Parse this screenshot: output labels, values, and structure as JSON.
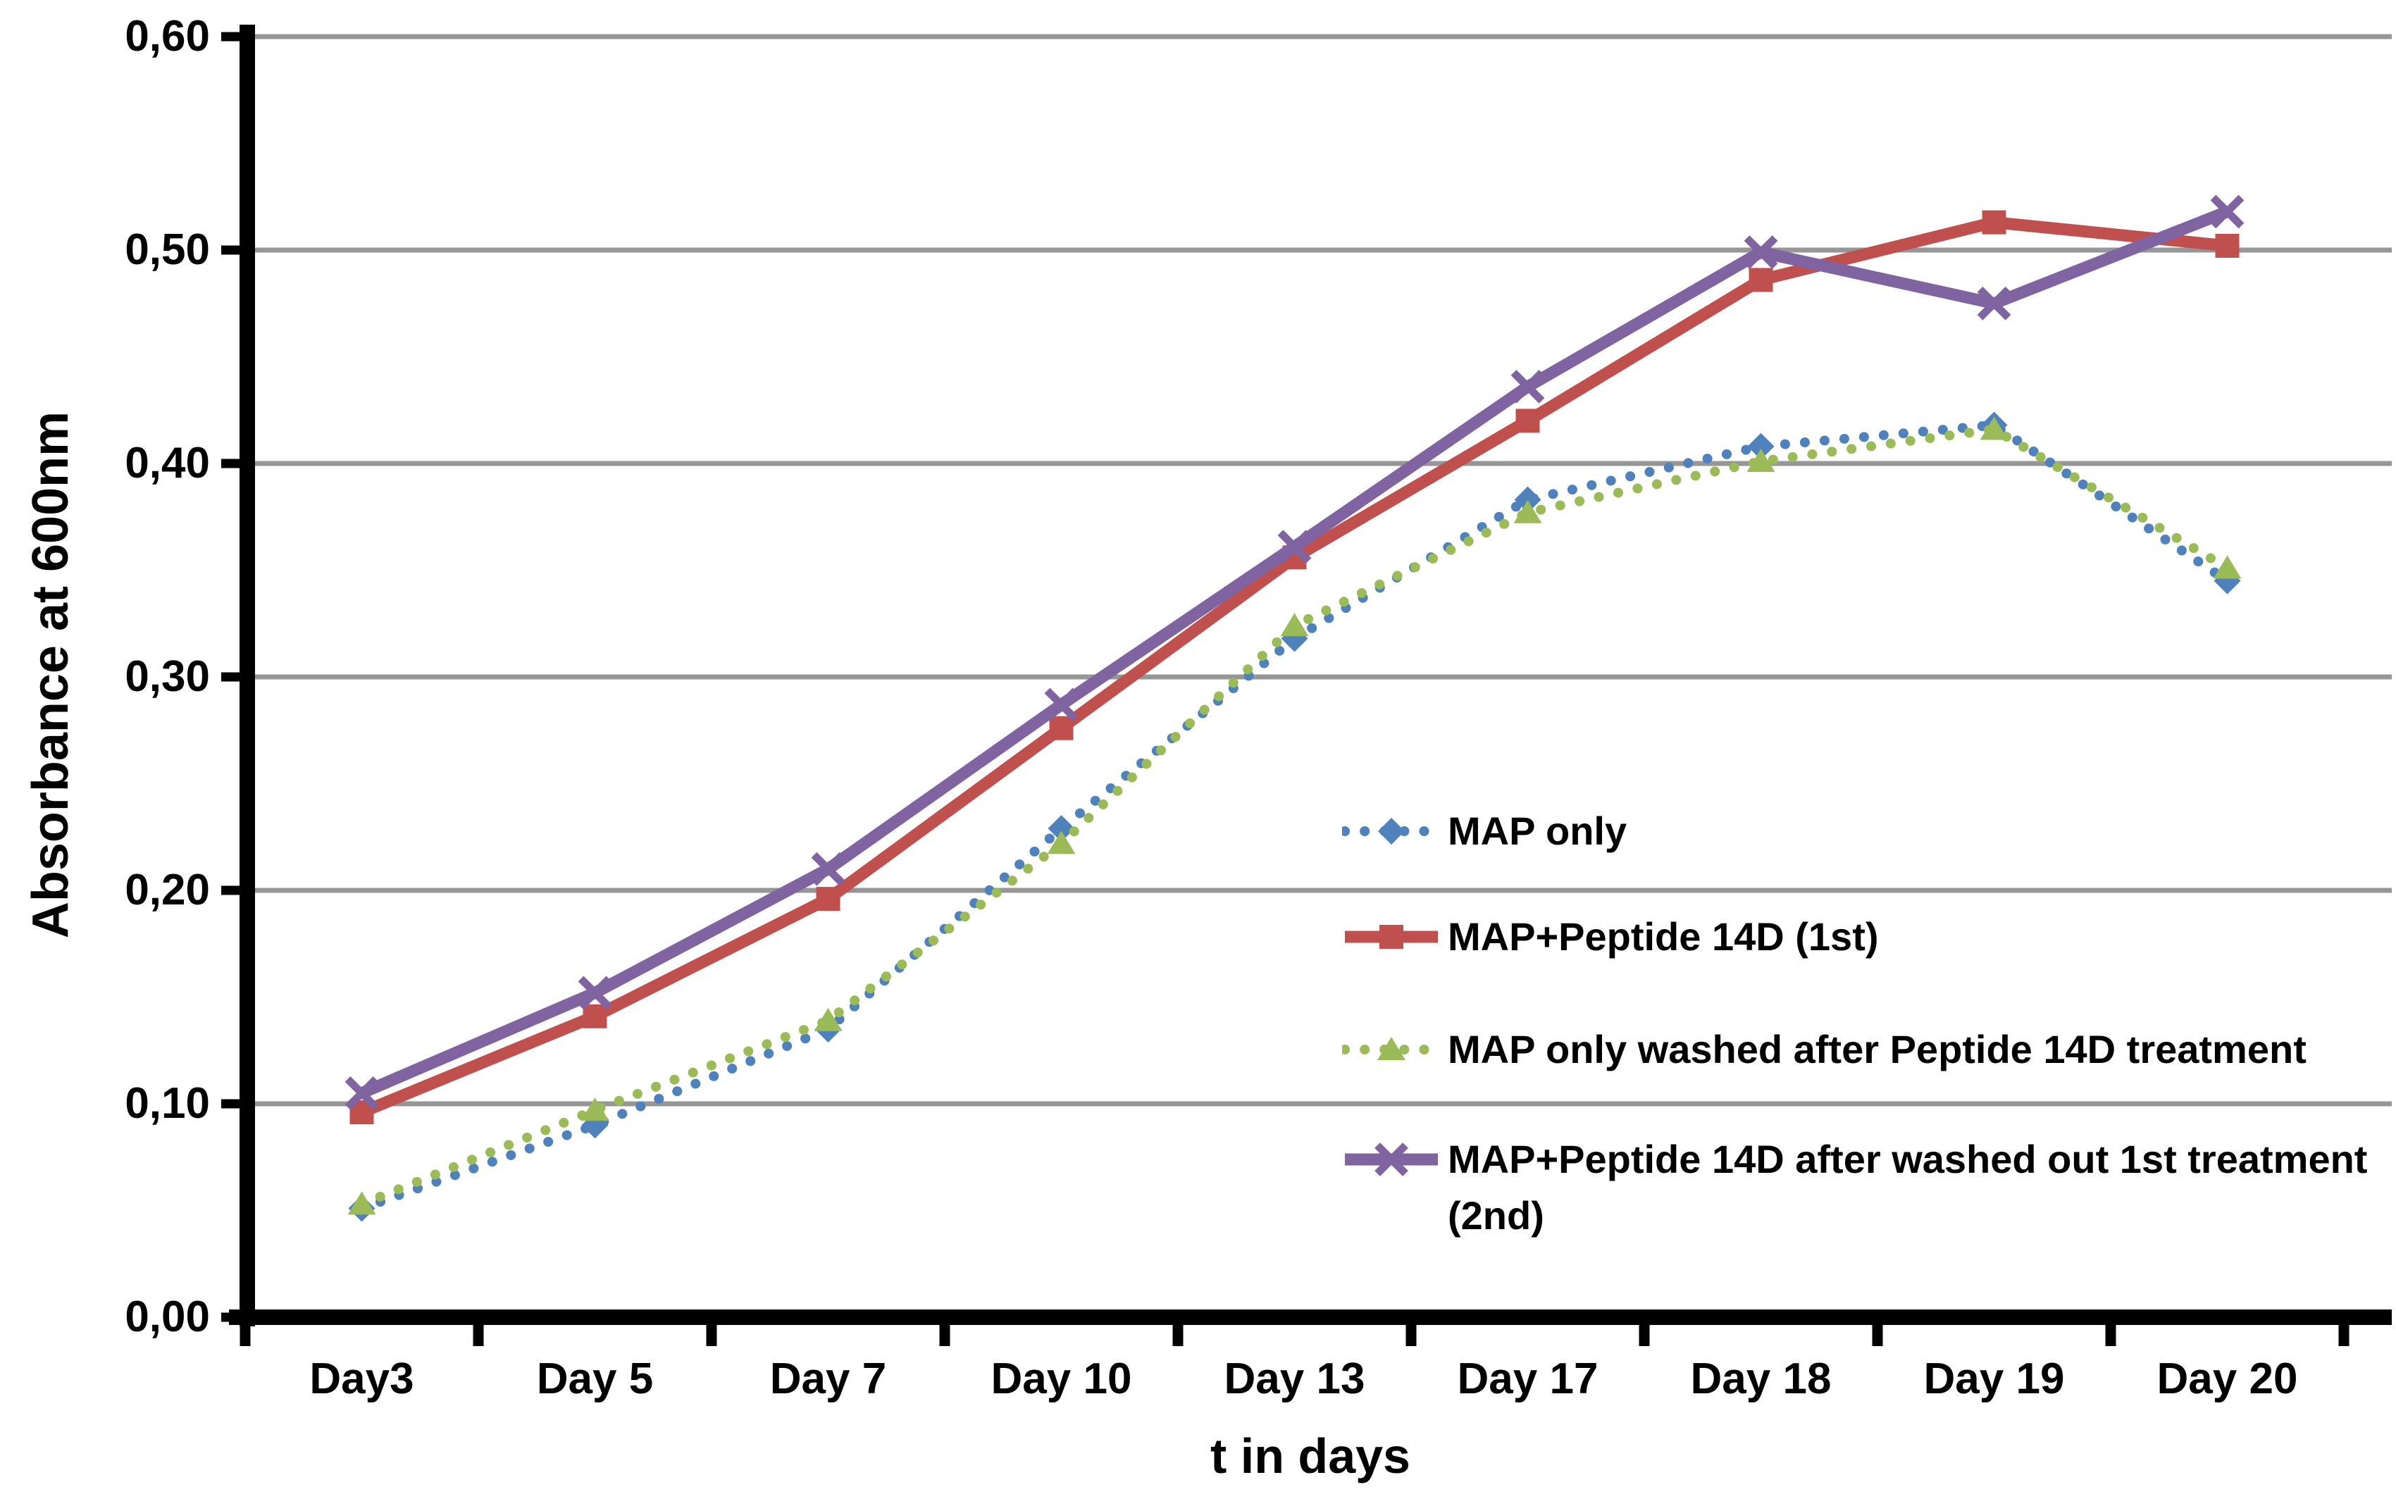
{
  "chart_data": {
    "type": "line",
    "title": "",
    "xlabel": "t in days",
    "ylabel": "Absorbance at 600nm",
    "categories": [
      "Day3",
      "Day 5",
      "Day 7",
      "Day 10",
      "Day 13",
      "Day 17",
      "Day 18",
      "Day 19",
      "Day 20"
    ],
    "y_ticks": [
      "0,00",
      "0,10",
      "0,20",
      "0,30",
      "0,40",
      "0,50",
      "0,60"
    ],
    "ylim": [
      0.0,
      0.6
    ],
    "y_step": 0.1,
    "grid": true,
    "legend_position": "inside-right",
    "series": [
      {
        "name": "MAP only",
        "color": "#4F81BD",
        "line": "dotted",
        "marker": "diamond",
        "values": [
          0.051,
          0.09,
          0.135,
          0.229,
          0.318,
          0.383,
          0.408,
          0.418,
          0.345
        ]
      },
      {
        "name": "MAP+Peptide 14D (1st)",
        "color": "#C0504D",
        "line": "solid",
        "marker": "square",
        "values": [
          0.096,
          0.141,
          0.196,
          0.276,
          0.356,
          0.42,
          0.486,
          0.513,
          0.502
        ]
      },
      {
        "name": "MAP only washed after Peptide 14D treatment",
        "color": "#9BBB59",
        "line": "dotted",
        "marker": "triangle",
        "values": [
          0.053,
          0.097,
          0.139,
          0.222,
          0.324,
          0.377,
          0.401,
          0.416,
          0.351
        ]
      },
      {
        "name": "MAP+Peptide 14D after washed out 1st treatment (2nd)",
        "color": "#8064A2",
        "line": "solid",
        "marker": "x",
        "values": [
          0.105,
          0.152,
          0.21,
          0.287,
          0.361,
          0.436,
          0.499,
          0.475,
          0.518
        ]
      }
    ],
    "legend_lines": [
      [
        "MAP only"
      ],
      [
        "MAP+Peptide 14D (1st)"
      ],
      [
        "MAP only washed after Peptide 14D treatment"
      ],
      [
        "MAP+Peptide 14D after washed out 1st treatment",
        "(2nd)"
      ]
    ]
  },
  "colors": {
    "gridline": "#969696",
    "axis": "#000000",
    "background": "#FFFFFF"
  }
}
